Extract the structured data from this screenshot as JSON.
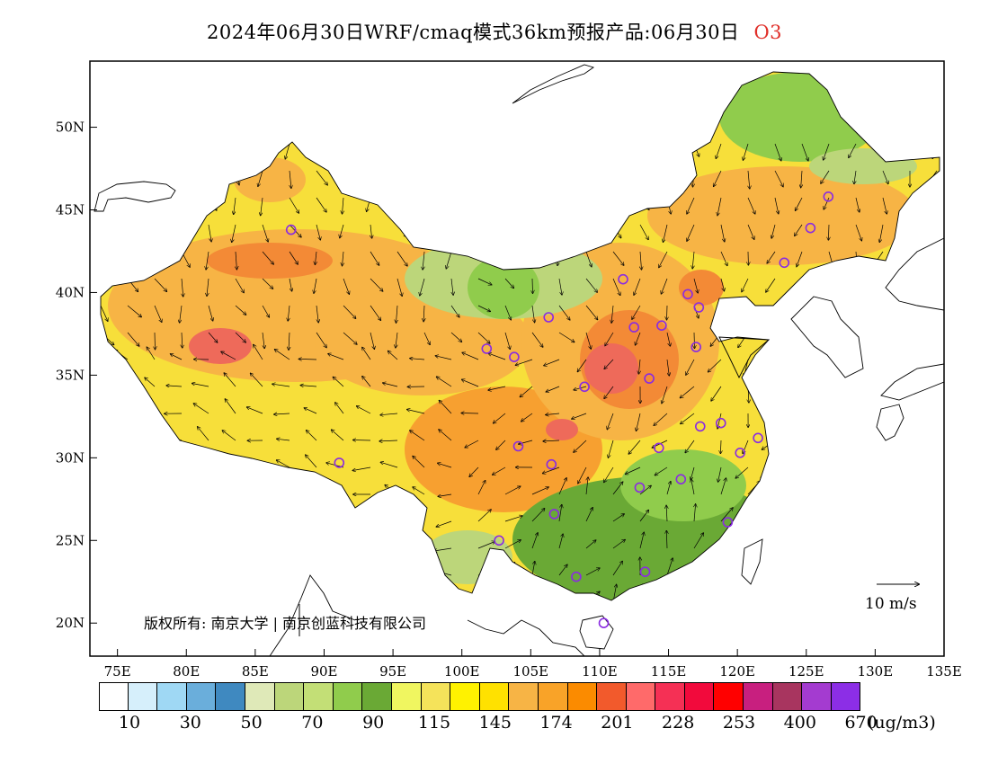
{
  "header": {
    "title": "2024年06月30日WRF/cmaq模式36km预报产品:06月30日",
    "species": "O3"
  },
  "map": {
    "lon_range": [
      73,
      135
    ],
    "lat_range": [
      18,
      54
    ],
    "lat_ticks": [
      "50N",
      "45N",
      "40N",
      "35N",
      "30N",
      "25N",
      "20N"
    ],
    "lon_ticks": [
      "75E",
      "80E",
      "85E",
      "90E",
      "95E",
      "100E",
      "105E",
      "110E",
      "115E",
      "120E",
      "125E",
      "130E",
      "135E"
    ],
    "copyright": "版权所有: 南京大学 | 南京创蓝科技有限公司",
    "wind_reference": "10 m/s",
    "city_markers": [
      {
        "lon": 87.6,
        "lat": 43.8
      },
      {
        "lon": 91.1,
        "lat": 29.7
      },
      {
        "lon": 101.8,
        "lat": 36.6
      },
      {
        "lon": 103.8,
        "lat": 36.1
      },
      {
        "lon": 106.3,
        "lat": 38.5
      },
      {
        "lon": 111.7,
        "lat": 40.8
      },
      {
        "lon": 112.5,
        "lat": 37.9
      },
      {
        "lon": 114.5,
        "lat": 38.0
      },
      {
        "lon": 116.4,
        "lat": 39.9
      },
      {
        "lon": 117.2,
        "lat": 39.1
      },
      {
        "lon": 117.0,
        "lat": 36.7
      },
      {
        "lon": 113.6,
        "lat": 34.8
      },
      {
        "lon": 108.9,
        "lat": 34.3
      },
      {
        "lon": 104.1,
        "lat": 30.7
      },
      {
        "lon": 106.5,
        "lat": 29.6
      },
      {
        "lon": 106.7,
        "lat": 26.6
      },
      {
        "lon": 102.7,
        "lat": 25.0
      },
      {
        "lon": 108.3,
        "lat": 22.8
      },
      {
        "lon": 113.3,
        "lat": 23.1
      },
      {
        "lon": 110.3,
        "lat": 20.0
      },
      {
        "lon": 112.9,
        "lat": 28.2
      },
      {
        "lon": 115.9,
        "lat": 28.7
      },
      {
        "lon": 114.3,
        "lat": 30.6
      },
      {
        "lon": 117.3,
        "lat": 31.9
      },
      {
        "lon": 118.8,
        "lat": 32.1
      },
      {
        "lon": 120.2,
        "lat": 30.3
      },
      {
        "lon": 121.5,
        "lat": 31.2
      },
      {
        "lon": 119.3,
        "lat": 26.1
      },
      {
        "lon": 123.4,
        "lat": 41.8
      },
      {
        "lon": 125.3,
        "lat": 43.9
      },
      {
        "lon": 126.6,
        "lat": 45.8
      }
    ],
    "marker_color": "#8a2be2"
  },
  "legend": {
    "colors": [
      "#ffffff",
      "#d6effb",
      "#9fd8f4",
      "#6aaedb",
      "#3f89c0",
      "#dfe9b8",
      "#bcd67a",
      "#c3df76",
      "#90cc4c",
      "#6aa935",
      "#f0f660",
      "#f5e35a",
      "#fff200",
      "#ffe100",
      "#f7b445",
      "#f9a328",
      "#fb8b00",
      "#f25a2c",
      "#ff6a6a",
      "#f53055",
      "#f20a3c",
      "#ff0000",
      "#c81f7f",
      "#a8355f",
      "#a43bd0",
      "#8c2ee6"
    ],
    "labels": [
      "10",
      "30",
      "50",
      "70",
      "90",
      "115",
      "145",
      "174",
      "201",
      "228",
      "253",
      "400",
      "670"
    ],
    "unit": "(ug/m3)"
  }
}
